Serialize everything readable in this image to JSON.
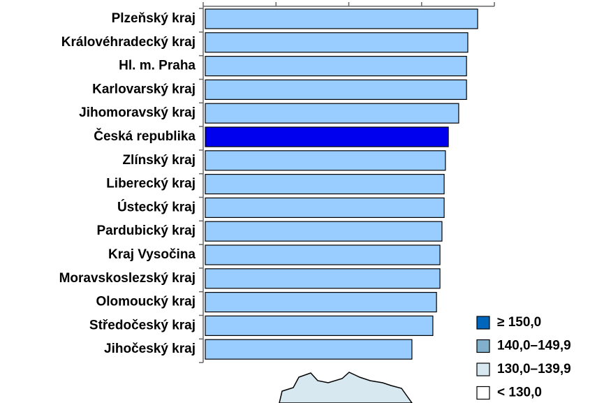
{
  "chart_data": {
    "type": "barh",
    "categories": [
      "Plzeňský kraj",
      "Královéhradecký kraj",
      "Hl. m. Praha",
      "Karlovarský kraj",
      "Jihomoravský kraj",
      "Česká republika",
      "Zlínský kraj",
      "Liberecký kraj",
      "Ústecký kraj",
      "Pardubický kraj",
      "Kraj Vysočina",
      "Moravskoslezský kraj",
      "Olomoucký kraj",
      "Středočeský kraj",
      "Jihočeský kraj"
    ],
    "values": [
      150.8,
      145.4,
      144.7,
      144.7,
      140.4,
      134.7,
      133.1,
      132.4,
      132.4,
      131.2,
      130.1,
      130.1,
      128.2,
      126.2,
      114.7
    ],
    "colors": [
      "#99ccff",
      "#99ccff",
      "#99ccff",
      "#99ccff",
      "#99ccff",
      "#0000ee",
      "#99ccff",
      "#99ccff",
      "#99ccff",
      "#99ccff",
      "#99ccff",
      "#99ccff",
      "#99ccff",
      "#99ccff",
      "#99ccff"
    ],
    "xlim": [
      0,
      160
    ],
    "xticks": [
      0,
      40,
      80,
      120,
      160
    ],
    "legend": [
      {
        "label": "≥ 150,0",
        "color": "#0066bb"
      },
      {
        "label": "140,0–149,9",
        "color": "#80b0cc"
      },
      {
        "label": "130,0–139,9",
        "color": "#d8e8f0"
      },
      {
        "label": "< 130,0",
        "color": "#ffffff"
      }
    ]
  }
}
